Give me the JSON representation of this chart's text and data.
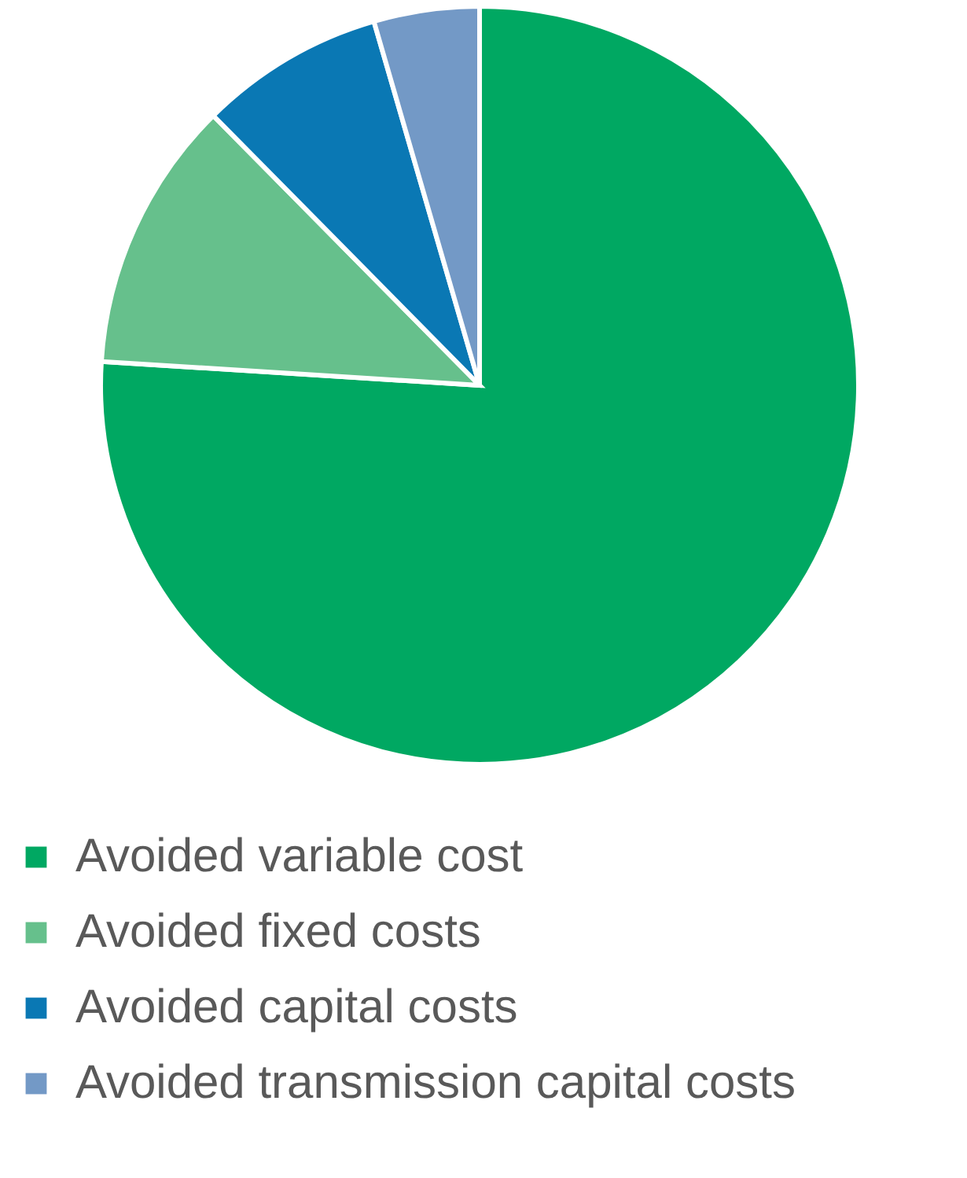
{
  "chart_data": {
    "type": "pie",
    "categories": [
      "Avoided variable cost",
      "Avoided fixed costs",
      "Avoided capital costs",
      "Avoided transmission capital costs"
    ],
    "values": [
      76,
      11.6,
      7.9,
      4.5
    ],
    "colors": [
      "#00a862",
      "#66c08c",
      "#0a78b4",
      "#7399c6"
    ],
    "legend": "bottom"
  }
}
